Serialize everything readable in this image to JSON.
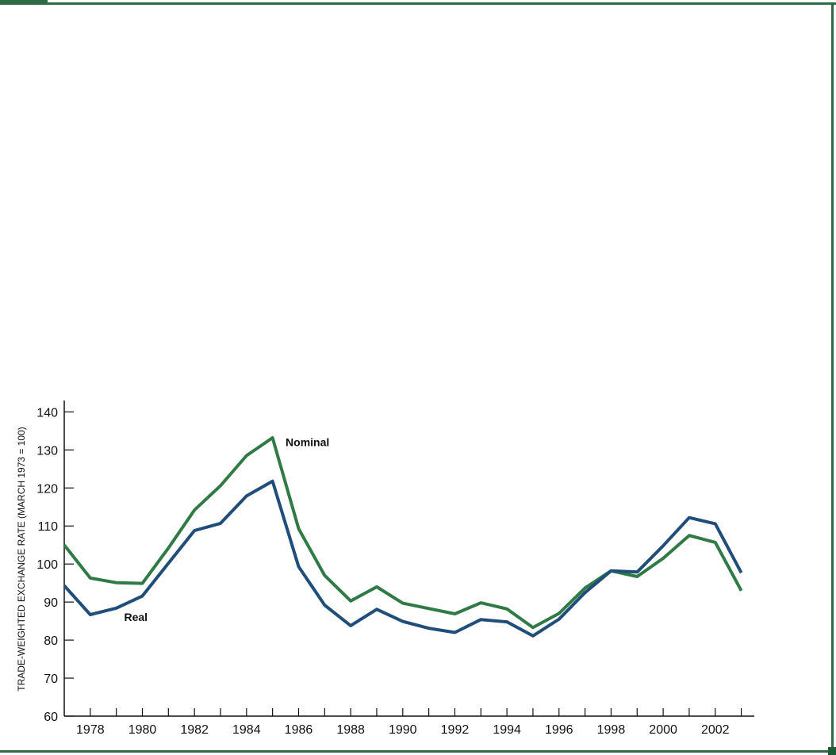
{
  "colors": {
    "frame": "#2e6b45",
    "nominal": "#2f7a45",
    "real": "#1f4e7a",
    "axis": "#111111"
  },
  "chart_data": {
    "type": "line",
    "title": "",
    "xlabel": "",
    "ylabel": "TRADE-WEIGHTED EXCHANGE RATE (MARCH 1973 = 100)",
    "xlim": [
      1977,
      2003.5
    ],
    "ylim": [
      60,
      143
    ],
    "x_ticks": [
      1978,
      1980,
      1982,
      1984,
      1986,
      1988,
      1990,
      1992,
      1994,
      1996,
      1998,
      2000,
      2002
    ],
    "y_ticks": [
      60,
      70,
      80,
      90,
      100,
      110,
      120,
      130,
      140
    ],
    "grid": false,
    "x": [
      1977,
      1978,
      1979,
      1980,
      1981,
      1982,
      1983,
      1984,
      1985,
      1986,
      1987,
      1988,
      1989,
      1990,
      1991,
      1992,
      1993,
      1994,
      1995,
      1996,
      1997,
      1998,
      1999,
      2000,
      2001,
      2002,
      2003
    ],
    "series": [
      {
        "name": "Nominal",
        "color": "#2f7a45",
        "values": [
          105,
          96.3,
          95.1,
          94.9,
          104.2,
          114.2,
          120.6,
          128.5,
          133.2,
          109.3,
          97,
          90.3,
          94,
          89.7,
          88.3,
          86.9,
          89.8,
          88.2,
          83.3,
          87,
          93.7,
          98.2,
          96.7,
          101.5,
          107.5,
          105.7,
          93
        ]
      },
      {
        "name": "Real",
        "color": "#1f4e7a",
        "values": [
          94.3,
          86.7,
          88.4,
          91.6,
          100.2,
          108.8,
          110.7,
          117.9,
          121.8,
          99.3,
          89.2,
          83.8,
          88.1,
          84.9,
          83.1,
          82,
          85.4,
          84.8,
          81.1,
          85.5,
          92.5,
          98.2,
          97.9,
          104.8,
          112.2,
          110.6,
          97.7
        ]
      }
    ],
    "annotations": [
      {
        "text": "Nominal",
        "x": 1985.5,
        "y": 131
      },
      {
        "text": "Real",
        "x": 1979.3,
        "y": 85
      }
    ]
  }
}
